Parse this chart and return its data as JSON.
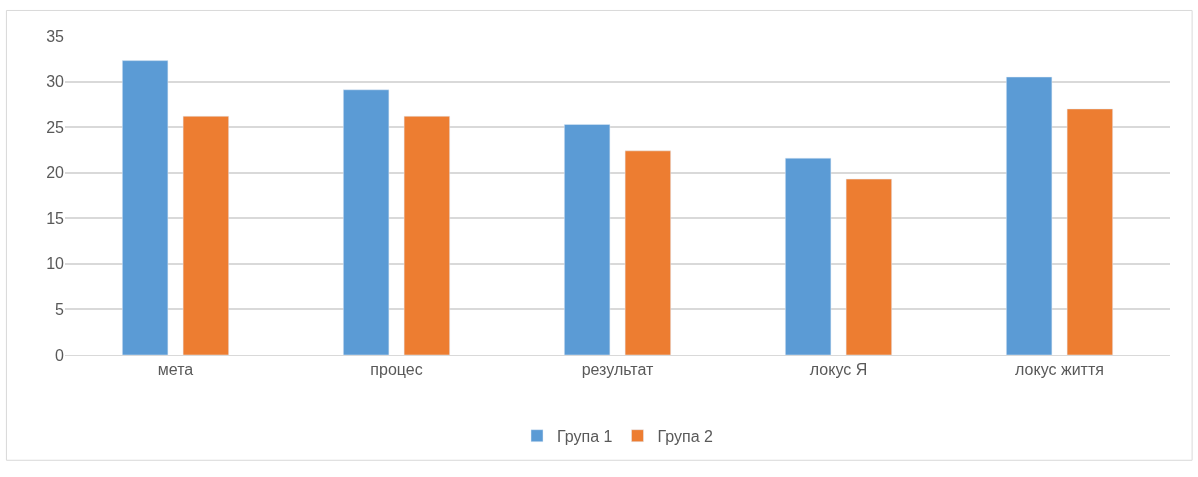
{
  "chart_data": {
    "type": "bar",
    "categories": [
      "мета",
      "процес",
      "результат",
      "локус Я",
      "локус життя"
    ],
    "series": [
      {
        "name": "Група 1",
        "color": "#5b9bd5",
        "values": [
          32.3,
          29.1,
          25.3,
          21.6,
          30.5
        ]
      },
      {
        "name": "Група 2",
        "color": "#ed7d31",
        "values": [
          26.2,
          26.2,
          22.4,
          19.3,
          27.0
        ]
      }
    ],
    "ylim": [
      0,
      35
    ],
    "yticks": [
      0,
      5,
      10,
      15,
      20,
      25,
      30,
      35
    ],
    "grid": "y",
    "legend": "bottom"
  }
}
